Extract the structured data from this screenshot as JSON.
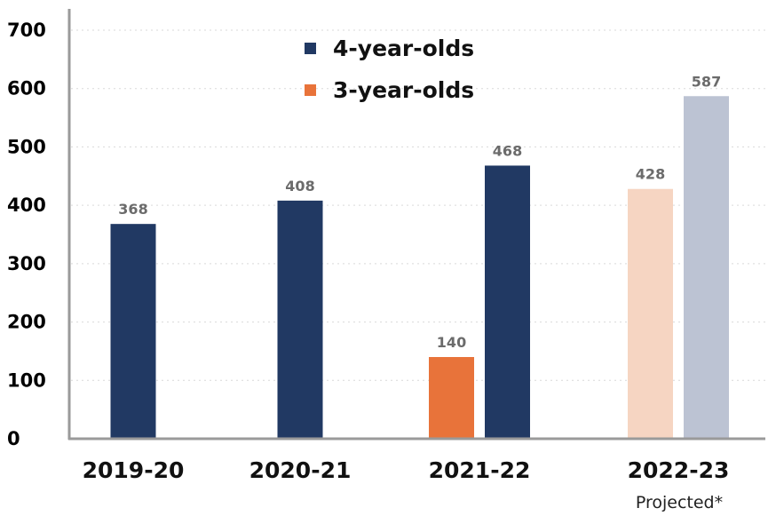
{
  "chart_data": {
    "type": "bar",
    "categories": [
      "2019-20",
      "2020-21",
      "2021-22",
      "2022-23"
    ],
    "category_notes": [
      "",
      "",
      "",
      "Projected*"
    ],
    "ylim": [
      0,
      700
    ],
    "yticks": [
      0,
      100,
      200,
      300,
      400,
      500,
      600,
      700
    ],
    "grid": true,
    "legend_position": "top-center",
    "series": [
      {
        "name": "3-year-olds",
        "color": "#e8733a",
        "projected_color": "#f6d5c2",
        "values": [
          null,
          null,
          140,
          428
        ]
      },
      {
        "name": "4-year-olds",
        "color": "#213963",
        "projected_color": "#bcc3d3",
        "values": [
          368,
          408,
          468,
          587
        ]
      }
    ],
    "projected_categories": [
      "2022-23"
    ]
  }
}
